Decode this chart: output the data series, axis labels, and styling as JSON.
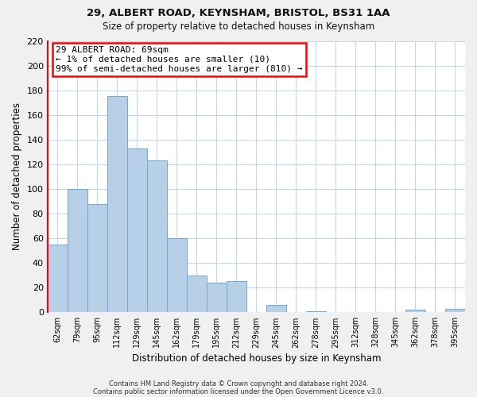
{
  "title1": "29, ALBERT ROAD, KEYNSHAM, BRISTOL, BS31 1AA",
  "title2": "Size of property relative to detached houses in Keynsham",
  "xlabel": "Distribution of detached houses by size in Keynsham",
  "ylabel": "Number of detached properties",
  "categories": [
    "62sqm",
    "79sqm",
    "95sqm",
    "112sqm",
    "129sqm",
    "145sqm",
    "162sqm",
    "179sqm",
    "195sqm",
    "212sqm",
    "229sqm",
    "245sqm",
    "262sqm",
    "278sqm",
    "295sqm",
    "312sqm",
    "328sqm",
    "345sqm",
    "362sqm",
    "378sqm",
    "395sqm"
  ],
  "values": [
    55,
    100,
    88,
    175,
    133,
    123,
    60,
    30,
    24,
    25,
    0,
    6,
    0,
    1,
    0,
    0,
    0,
    0,
    2,
    0,
    3
  ],
  "bar_color": "#b8cfe8",
  "bar_edge_color": "#6fa8d6",
  "ylim": [
    0,
    220
  ],
  "yticks": [
    0,
    20,
    40,
    60,
    80,
    100,
    120,
    140,
    160,
    180,
    200,
    220
  ],
  "annotation_title": "29 ALBERT ROAD: 69sqm",
  "annotation_line1": "← 1% of detached houses are smaller (10)",
  "annotation_line2": "99% of semi-detached houses are larger (810) →",
  "footnote1": "Contains HM Land Registry data © Crown copyright and database right 2024.",
  "footnote2": "Contains public sector information licensed under the Open Government Licence v3.0.",
  "background_color": "#f0f0f0",
  "plot_background_color": "#ffffff",
  "grid_color": "#c8d4e8"
}
